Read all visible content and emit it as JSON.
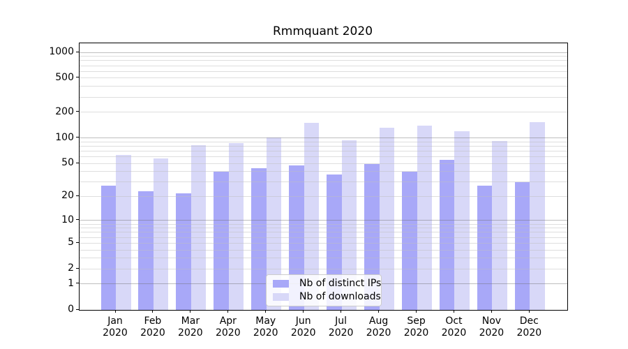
{
  "chart_data": {
    "type": "bar",
    "title": "Rmmquant 2020",
    "categories": [
      "Jan 2020",
      "Feb 2020",
      "Mar 2020",
      "Apr 2020",
      "May 2020",
      "Jun 2020",
      "Jul 2020",
      "Aug 2020",
      "Sep 2020",
      "Oct 2020",
      "Nov 2020",
      "Dec 2020"
    ],
    "series": [
      {
        "name": "Nb of distinct IPs",
        "color": "#a8a8f8",
        "values": [
          27,
          23,
          22,
          40,
          44,
          47,
          37,
          49,
          40,
          55,
          27,
          30
        ]
      },
      {
        "name": "Nb of downloads",
        "color": "#d8d8f8",
        "values": [
          63,
          57,
          82,
          87,
          101,
          150,
          94,
          131,
          139,
          119,
          92,
          153
        ]
      }
    ],
    "yscale": "log1p",
    "y_tick_labels": [
      0,
      1,
      2,
      5,
      10,
      20,
      50,
      100,
      200,
      500,
      1000
    ],
    "y_axis_top_value": 1276,
    "xlabel": "",
    "ylabel": "",
    "grid": "on",
    "legend_position": "lower-center",
    "background_color": "#ffffff",
    "axis_color": "#000000",
    "major_grid_color": "#bdbdbd",
    "minor_grid_color": "#ececec"
  }
}
